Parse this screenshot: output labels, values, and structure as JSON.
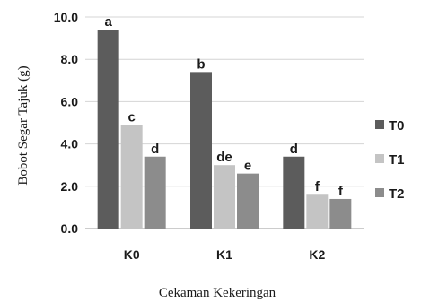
{
  "chart_data": {
    "type": "bar",
    "title": "",
    "xlabel": "Cekaman Kekeringan",
    "ylabel": "Bobot Segar Tajuk (g)",
    "ylim": [
      0,
      10
    ],
    "yticks": [
      0,
      2,
      4,
      6,
      8,
      10
    ],
    "ytick_labels": [
      "0.0",
      "2.0",
      "4.0",
      "6.0",
      "8.0",
      "10.0"
    ],
    "grid": true,
    "legend_position": "right",
    "categories": [
      "K0",
      "K1",
      "K2"
    ],
    "series": [
      {
        "name": "T0",
        "color": "#5c5c5c",
        "values": [
          9.4,
          7.4,
          3.4
        ],
        "labels": [
          "a",
          "b",
          "d"
        ]
      },
      {
        "name": "T1",
        "color": "#c4c4c4",
        "values": [
          4.9,
          3.0,
          1.6
        ],
        "labels": [
          "c",
          "de",
          "f"
        ]
      },
      {
        "name": "T2",
        "color": "#8c8c8c",
        "values": [
          3.4,
          2.6,
          1.4
        ],
        "labels": [
          "d",
          "e",
          "f"
        ]
      }
    ]
  }
}
